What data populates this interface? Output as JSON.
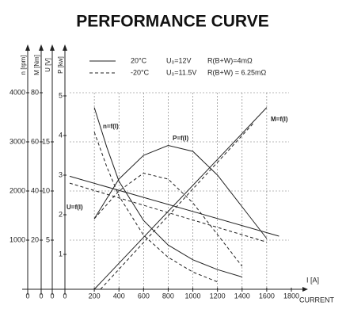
{
  "chart_data": {
    "type": "line",
    "title": "PERFORMANCE CURVE",
    "legend": [
      {
        "label": "20°C",
        "voltage": "U₀=12V",
        "resistance": "R(B+W)=4mΩ",
        "dashed": false
      },
      {
        "label": "-20°C",
        "voltage": "U₀=11.5V",
        "resistance": "R(B+W) = 6.25mΩ",
        "dashed": true
      }
    ],
    "x_label": "I [A]",
    "x_title": "CURRENT",
    "xlim": [
      0,
      1800
    ],
    "xticks": [
      200,
      400,
      600,
      800,
      1000,
      1200,
      1400,
      1600,
      1800
    ],
    "grid": true,
    "y_axes": [
      {
        "label": "n [rpm]",
        "ylim": [
          0,
          4000
        ],
        "yticks": [
          0,
          1000,
          2000,
          3000,
          4000
        ]
      },
      {
        "label": "M [Nm]",
        "ylim": [
          0,
          80
        ],
        "yticks": [
          0,
          20,
          40,
          60,
          80
        ]
      },
      {
        "label": "U [V]",
        "ylim": [
          0,
          20
        ],
        "yticks": [
          0,
          5,
          10,
          15
        ]
      },
      {
        "label": "P [kw]",
        "ylim": [
          0,
          5
        ],
        "yticks": [
          0,
          1,
          2,
          3,
          4,
          5
        ]
      }
    ],
    "series": [
      {
        "name": "n=f(I)",
        "axis": "n [rpm]",
        "color": "#222222",
        "x": [
          200,
          300,
          400,
          600,
          800,
          1000,
          1200,
          1400
        ],
        "values": [
          3700,
          2900,
          2200,
          1400,
          900,
          600,
          400,
          250
        ],
        "dashed_x": [
          200,
          300,
          400,
          600,
          800,
          1000,
          1200
        ],
        "dashed_values": [
          3200,
          2500,
          1900,
          1100,
          650,
          350,
          150
        ]
      },
      {
        "name": "P=f(I)",
        "axis": "P [kw]",
        "color": "#222222",
        "x": [
          200,
          400,
          600,
          800,
          1000,
          1200,
          1400,
          1600
        ],
        "values": [
          1.9,
          2.9,
          3.5,
          3.75,
          3.6,
          3.0,
          2.2,
          1.4
        ],
        "dashed_x": [
          200,
          400,
          600,
          800,
          1000,
          1200,
          1400
        ],
        "dashed_values": [
          1.9,
          2.6,
          3.05,
          2.9,
          2.3,
          1.5,
          0.7
        ]
      },
      {
        "name": "M=f(I)",
        "axis": "M [Nm]",
        "color": "#222222",
        "x": [
          200,
          1600
        ],
        "values": [
          0,
          74
        ],
        "dashed_x": [
          250,
          1500
        ],
        "dashed_values": [
          0,
          68
        ]
      },
      {
        "name": "U=f(I)",
        "axis": "U [V]",
        "color": "#222222",
        "x": [
          0,
          1700
        ],
        "values": [
          11.5,
          5.4
        ],
        "dashed_x": [
          0,
          1600
        ],
        "dashed_values": [
          10.8,
          4.8
        ]
      }
    ]
  }
}
